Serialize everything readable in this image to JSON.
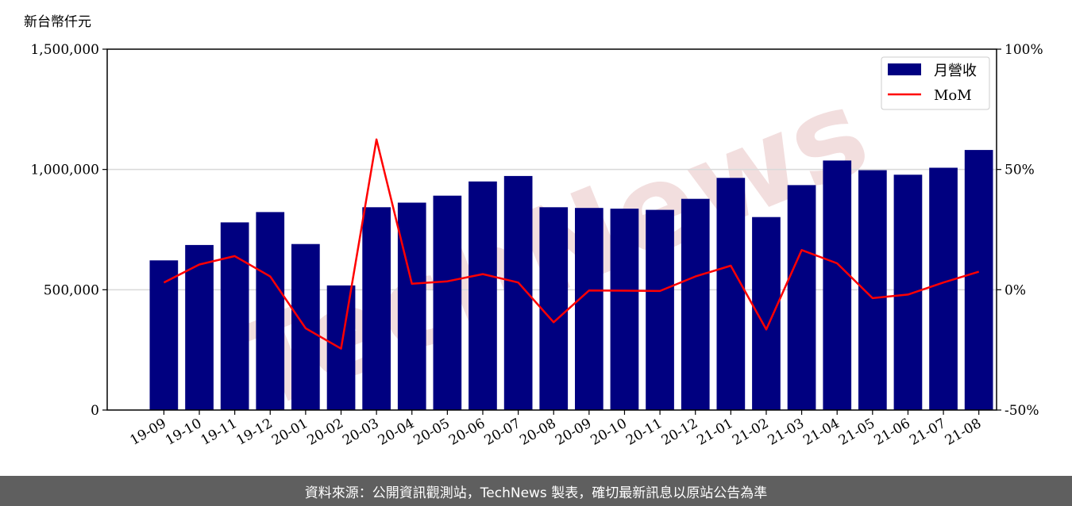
{
  "chart_data": {
    "type": "bar",
    "unit_label": "新台幣仟元",
    "categories": [
      "19-09",
      "19-10",
      "19-11",
      "19-12",
      "20-01",
      "20-02",
      "20-03",
      "20-04",
      "20-05",
      "20-06",
      "20-07",
      "20-08",
      "20-09",
      "20-10",
      "20-11",
      "20-12",
      "21-01",
      "21-02",
      "21-03",
      "21-04",
      "21-05",
      "21-06",
      "21-07",
      "21-08"
    ],
    "series": [
      {
        "name": "月營收",
        "type": "bar",
        "axis": "left",
        "color": "#000080",
        "values": [
          622000,
          686000,
          780000,
          823000,
          690000,
          518000,
          843000,
          862000,
          891000,
          950000,
          973000,
          843000,
          840000,
          837000,
          832000,
          878000,
          965000,
          802000,
          935000,
          1037000,
          997000,
          978000,
          1007000,
          1081000
        ]
      },
      {
        "name": "MoM",
        "type": "line",
        "axis": "right",
        "color": "#ff0000",
        "values": [
          3,
          10.5,
          14,
          5.5,
          -16,
          -24.5,
          62.5,
          2.5,
          3.5,
          6.5,
          3,
          -13.5,
          -0.3,
          -0.4,
          -0.5,
          5.5,
          10,
          -16.5,
          16.5,
          11,
          -3.5,
          -2,
          3,
          7.5
        ]
      }
    ],
    "ylim": [
      0,
      1500000
    ],
    "y_ticks": [
      "0",
      "500,000",
      "1,000,000",
      "1,500,000"
    ],
    "y2lim": [
      -50,
      100
    ],
    "y2_ticks": [
      "-50%",
      "0%",
      "50%",
      "100%"
    ],
    "grid": "horizontal",
    "legend_position": "top-right"
  },
  "watermark": "TechNews",
  "footer_text": "資料來源：公開資訊觀測站，TechNews 製表，確切最新訊息以原站公告為準"
}
